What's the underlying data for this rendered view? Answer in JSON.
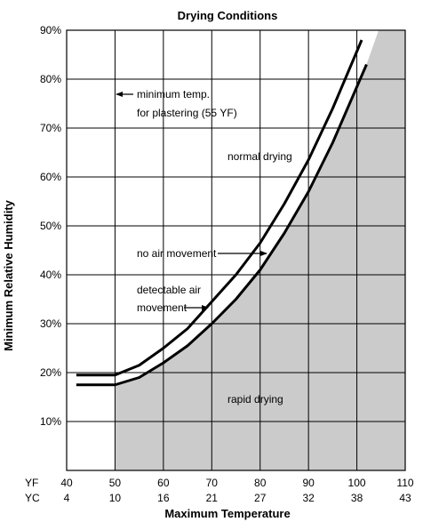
{
  "chart_data": {
    "type": "line",
    "title": "Drying Conditions",
    "xlabel": "Maximum Temperature",
    "ylabel": "Minimum Relative Humidity",
    "x_unit_primary": "ΥF",
    "x_unit_secondary": "ΥC",
    "xlim": [
      40,
      110
    ],
    "ylim": [
      0,
      90
    ],
    "grid": true,
    "x_ticks_f": [
      "40",
      "50",
      "60",
      "70",
      "80",
      "90",
      "100",
      "110"
    ],
    "x_ticks_c": [
      "4",
      "10",
      "16",
      "21",
      "27",
      "32",
      "38",
      "43"
    ],
    "y_ticks": [
      "10%",
      "20%",
      "30%",
      "40%",
      "50%",
      "60%",
      "70%",
      "80%",
      "90%"
    ],
    "series": [
      {
        "x": [
          42,
          50,
          55,
          60,
          65,
          70,
          75,
          80,
          85,
          90,
          95,
          101
        ],
        "y": [
          19.5,
          19.5,
          21.5,
          25,
          29,
          34.5,
          40,
          46.5,
          54.5,
          63.5,
          74,
          88
        ]
      },
      {
        "x": [
          42,
          50,
          55,
          60,
          65,
          70,
          75,
          80,
          85,
          90,
          95,
          102
        ],
        "y": [
          17.5,
          17.5,
          19,
          22,
          25.5,
          30,
          35,
          41,
          48.5,
          57,
          67,
          83
        ]
      }
    ],
    "shaded_region": {
      "label": "rapid drying",
      "x_start": 50,
      "boundary_x": [
        50,
        55,
        60,
        65,
        70,
        75,
        80,
        85,
        90,
        95,
        102,
        104.5
      ],
      "boundary_y": [
        17.5,
        19,
        22,
        25.5,
        30,
        35,
        41,
        48.5,
        57,
        67,
        83,
        90
      ]
    },
    "annotations": {
      "min_temp": [
        "minimum temp.",
        "for plastering (55 ΥF)"
      ],
      "normal": "normal drying",
      "no_air": "no air movement",
      "detectable": [
        "detectable air",
        "movement"
      ],
      "rapid": "rapid drying"
    }
  }
}
